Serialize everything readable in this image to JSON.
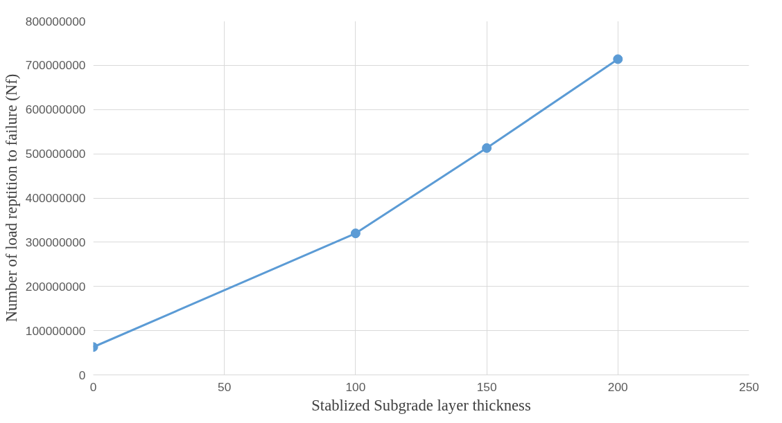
{
  "chart_data": {
    "type": "line",
    "xlabel": "Stablized Subgrade layer thickness",
    "ylabel": "Number of load reptition to failure (Nf)",
    "x": [
      0,
      100,
      150,
      200
    ],
    "series": [
      {
        "color": "#5b9bd5",
        "values": [
          63000000,
          320000000,
          513000000,
          714000000
        ]
      }
    ],
    "xlim": [
      0,
      250
    ],
    "xticks": [
      0,
      50,
      100,
      150,
      200,
      250
    ],
    "ylim": [
      0,
      800000000
    ],
    "yticks": [
      0,
      100000000,
      200000000,
      300000000,
      400000000,
      500000000,
      600000000,
      700000000,
      800000000
    ],
    "grid": true,
    "marker": "circle",
    "line_style": "solid"
  }
}
